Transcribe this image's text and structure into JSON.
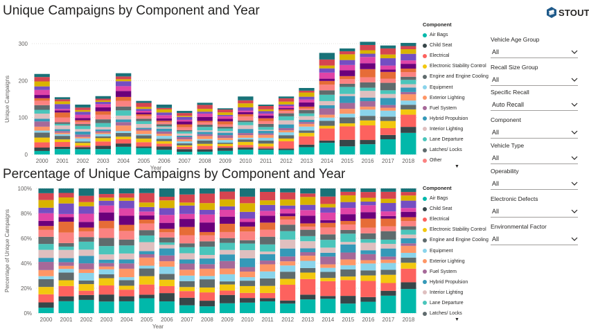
{
  "page": {
    "title1": "Unique Campaigns by Component and Year",
    "title2": "Percentage of Unique Campaigns by Component and Year",
    "logo_text": "STOUT",
    "logo_color": "#1f5a8a"
  },
  "components": [
    {
      "name": "Air Bags",
      "color": "#01b8aa"
    },
    {
      "name": "Child Seat",
      "color": "#374649"
    },
    {
      "name": "Electrical",
      "color": "#fd625e"
    },
    {
      "name": "Electronic Stability Control",
      "color": "#f2c80f"
    },
    {
      "name": "Engine and Engine Cooling",
      "color": "#5f6b6d"
    },
    {
      "name": "Equipment",
      "color": "#8ad4eb"
    },
    {
      "name": "Exterior Lighting",
      "color": "#fe9666"
    },
    {
      "name": "Fuel System",
      "color": "#a66999"
    },
    {
      "name": "Hybrid Propulsion",
      "color": "#3599b8"
    },
    {
      "name": "Interior Lighting",
      "color": "#dfbfbf"
    },
    {
      "name": "Lane Departure",
      "color": "#4ac5bb"
    },
    {
      "name": "Latches/ Locks",
      "color": "#5f6b6d"
    },
    {
      "name": "Other",
      "color": "#fb8281"
    }
  ],
  "legend1": {
    "title": "Component",
    "items": [
      "Air Bags",
      "Child Seat",
      "Electrical",
      "Electronic Stability Control",
      "Engine and Engine Cooling",
      "Equipment",
      "Exterior Lighting",
      "Fuel System",
      "Hybrid Propulsion",
      "Interior Lighting",
      "Lane Departure",
      "Latches/ Locks",
      "Other"
    ],
    "more_arrow": "▼"
  },
  "legend2": {
    "title": "Component",
    "items": [
      "Air Bags",
      "Child Seat",
      "Electrical",
      "Electronic Stability Control",
      "Engine and Engine Cooling",
      "Equipment",
      "Exterior Lighting",
      "Fuel System",
      "Hybrid Propulsion",
      "Interior Lighting",
      "Lane Departure",
      "Latches/ Locks"
    ],
    "more_arrow": "▼"
  },
  "slicers": [
    {
      "label": "Vehicle Age Group",
      "value": "All"
    },
    {
      "label": "Recall Size Group",
      "value": "All"
    },
    {
      "label": "Specific Recall",
      "value": "Auto Recall"
    },
    {
      "label": "Component",
      "value": "All"
    },
    {
      "label": "Vehicle Type",
      "value": "All"
    },
    {
      "label": "Operability",
      "value": "All"
    },
    {
      "label": "Electronic Defects",
      "value": "All"
    },
    {
      "label": "Environmental Factor",
      "value": "All"
    }
  ],
  "chart_data": [
    {
      "type": "bar",
      "stacked": true,
      "title": "Unique Campaigns by Component and Year",
      "xlabel": "Year",
      "ylabel": "Unique Campaigns",
      "ylim": [
        0,
        300
      ],
      "yticks": [
        "0",
        "100",
        "200",
        "300"
      ],
      "categories": [
        "2000",
        "2001",
        "2002",
        "2003",
        "2004",
        "2005",
        "2006",
        "2007",
        "2008",
        "2009",
        "2010",
        "2011",
        "2012",
        "2013",
        "2014",
        "2015",
        "2016",
        "2017",
        "2018"
      ],
      "totals": [
        218,
        155,
        135,
        158,
        220,
        145,
        135,
        118,
        140,
        125,
        157,
        135,
        157,
        180,
        275,
        287,
        305,
        295,
        302
      ],
      "extra_colors": [
        "#e66c37",
        "#6b007b",
        "#e044a7",
        "#744ec2",
        "#d9b300",
        "#d64550",
        "#197278",
        "#1aab40",
        "#15c6f4",
        "#4766ff",
        "#c83d95",
        "#ff977e",
        "#168980",
        "#ecc846",
        "#b3b0ad"
      ],
      "grid": true,
      "legend": "right"
    },
    {
      "type": "bar",
      "stacked": true,
      "normalized": true,
      "title": "Percentage of Unique Campaigns by Component and Year",
      "xlabel": "Year",
      "ylabel": "Percentage of Unique Campaigns",
      "ylim": [
        0,
        100
      ],
      "yticks": [
        "0%",
        "20%",
        "40%",
        "60%",
        "80%",
        "100%"
      ],
      "categories": [
        "2000",
        "2001",
        "2002",
        "2003",
        "2004",
        "2005",
        "2006",
        "2007",
        "2008",
        "2009",
        "2010",
        "2011",
        "2012",
        "2013",
        "2014",
        "2015",
        "2016",
        "2017",
        "2018"
      ],
      "grid": true,
      "legend": "right"
    }
  ]
}
